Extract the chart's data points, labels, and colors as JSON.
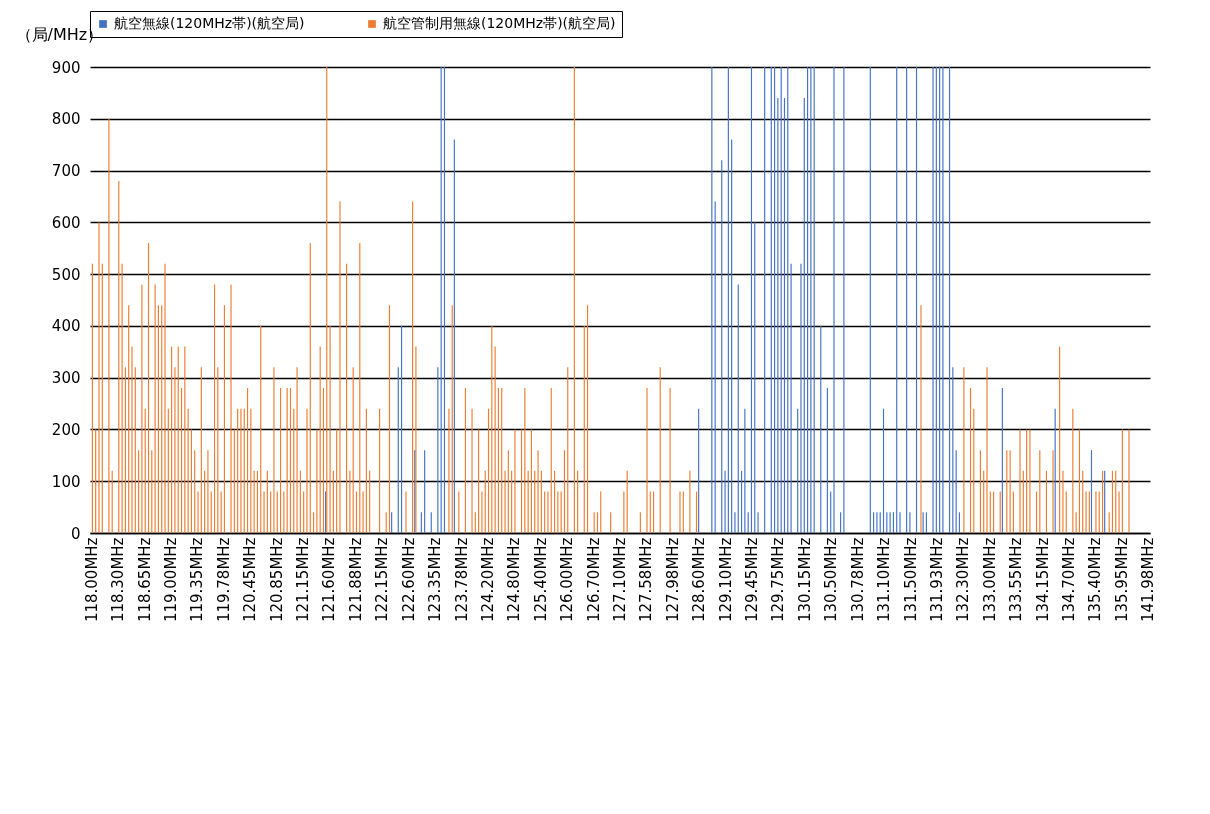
{
  "chart_data": {
    "type": "bar",
    "ylabel": "（局/MHz）",
    "categories": [
      "118.00MHz",
      null,
      null,
      null,
      null,
      null,
      null,
      null,
      "118.30MHz",
      null,
      null,
      null,
      null,
      null,
      null,
      null,
      "118.65MHz",
      null,
      null,
      null,
      null,
      null,
      null,
      null,
      "119.00MHz",
      null,
      null,
      null,
      null,
      null,
      null,
      null,
      "119.35MHz",
      null,
      null,
      null,
      null,
      null,
      null,
      null,
      "119.78MHz",
      null,
      null,
      null,
      null,
      null,
      null,
      null,
      "120.45MHz",
      null,
      null,
      null,
      null,
      null,
      null,
      null,
      "120.85MHz",
      null,
      null,
      null,
      null,
      null,
      null,
      null,
      "121.15MHz",
      null,
      null,
      null,
      null,
      null,
      null,
      null,
      "121.60MHz",
      null,
      null,
      null,
      null,
      null,
      null,
      null,
      "121.88MHz",
      null,
      null,
      null,
      null,
      null,
      null,
      null,
      "122.15MHz",
      null,
      null,
      null,
      null,
      null,
      null,
      null,
      "122.60MHz",
      null,
      null,
      null,
      null,
      null,
      null,
      null,
      "123.35MHz",
      null,
      null,
      null,
      null,
      null,
      null,
      null,
      "123.78MHz",
      null,
      null,
      null,
      null,
      null,
      null,
      null,
      "124.20MHz",
      null,
      null,
      null,
      null,
      null,
      null,
      null,
      "124.80MHz",
      null,
      null,
      null,
      null,
      null,
      null,
      null,
      "125.40MHz",
      null,
      null,
      null,
      null,
      null,
      null,
      null,
      "126.00MHz",
      null,
      null,
      null,
      null,
      null,
      null,
      null,
      "126.70MHz",
      null,
      null,
      null,
      null,
      null,
      null,
      null,
      "127.10MHz",
      null,
      null,
      null,
      null,
      null,
      null,
      null,
      "127.58MHz",
      null,
      null,
      null,
      null,
      null,
      null,
      null,
      "127.98MHz",
      null,
      null,
      null,
      null,
      null,
      null,
      null,
      "128.60MHz",
      null,
      null,
      null,
      null,
      null,
      null,
      null,
      "129.10MHz",
      null,
      null,
      null,
      null,
      null,
      null,
      null,
      "129.45MHz",
      null,
      null,
      null,
      null,
      null,
      null,
      null,
      "129.75MHz",
      null,
      null,
      null,
      null,
      null,
      null,
      null,
      "130.15MHz",
      null,
      null,
      null,
      null,
      null,
      null,
      null,
      "130.50MHz",
      null,
      null,
      null,
      null,
      null,
      null,
      null,
      "130.78MHz",
      null,
      null,
      null,
      null,
      null,
      null,
      null,
      "131.10MHz",
      null,
      null,
      null,
      null,
      null,
      null,
      null,
      "131.50MHz",
      null,
      null,
      null,
      null,
      null,
      null,
      null,
      "131.93MHz",
      null,
      null,
      null,
      null,
      null,
      null,
      null,
      "132.30MHz",
      null,
      null,
      null,
      null,
      null,
      null,
      null,
      "133.00MHz",
      null,
      null,
      null,
      null,
      null,
      null,
      null,
      "133.55MHz",
      null,
      null,
      null,
      null,
      null,
      null,
      null,
      "134.15MHz",
      null,
      null,
      null,
      null,
      null,
      null,
      null,
      "134.70MHz",
      null,
      null,
      null,
      null,
      null,
      null,
      null,
      "135.40MHz",
      null,
      null,
      null,
      null,
      null,
      null,
      null,
      "135.95MHz",
      null,
      null,
      null,
      null,
      null,
      null,
      null,
      "141.98MHz"
    ],
    "series": [
      {
        "name": "航空無線(120MHz帯)(航空局)",
        "color": "#4472c4",
        "values": [
          null,
          null,
          null,
          null,
          null,
          null,
          null,
          null,
          null,
          null,
          null,
          null,
          null,
          null,
          null,
          null,
          null,
          null,
          null,
          null,
          null,
          null,
          null,
          null,
          null,
          null,
          null,
          null,
          null,
          null,
          null,
          null,
          null,
          null,
          null,
          null,
          null,
          null,
          null,
          null,
          null,
          null,
          null,
          null,
          null,
          null,
          null,
          null,
          null,
          null,
          null,
          null,
          null,
          null,
          null,
          null,
          null,
          null,
          null,
          null,
          null,
          null,
          null,
          null,
          null,
          null,
          null,
          null,
          null,
          null,
          null,
          80,
          null,
          null,
          null,
          null,
          null,
          null,
          null,
          null,
          null,
          null,
          null,
          null,
          null,
          null,
          null,
          null,
          null,
          null,
          null,
          40,
          null,
          320,
          400,
          null,
          null,
          null,
          160,
          null,
          40,
          160,
          null,
          40,
          null,
          320,
          900,
          900,
          null,
          null,
          760,
          null,
          null,
          null,
          null,
          null,
          null,
          null,
          null,
          null,
          null,
          null,
          null,
          null,
          null,
          null,
          null,
          null,
          null,
          null,
          null,
          null,
          null,
          null,
          null,
          null,
          null,
          null,
          null,
          null,
          null,
          null,
          null,
          null,
          null,
          null,
          null,
          null,
          null,
          null,
          null,
          null,
          null,
          null,
          null,
          null,
          null,
          null,
          null,
          null,
          null,
          null,
          null,
          null,
          null,
          null,
          null,
          null,
          null,
          null,
          null,
          null,
          null,
          null,
          null,
          null,
          null,
          null,
          null,
          null,
          null,
          null,
          null,
          null,
          240,
          null,
          null,
          null,
          900,
          640,
          null,
          720,
          120,
          900,
          760,
          40,
          480,
          120,
          240,
          40,
          900,
          600,
          40,
          null,
          900,
          null,
          900,
          900,
          840,
          900,
          840,
          900,
          520,
          null,
          240,
          520,
          840,
          900,
          900,
          900,
          null,
          400,
          null,
          280,
          80,
          900,
          null,
          40,
          900,
          null,
          null,
          null,
          null,
          null,
          null,
          null,
          900,
          40,
          40,
          40,
          240,
          40,
          40,
          40,
          900,
          40,
          null,
          900,
          40,
          null,
          900,
          null,
          40,
          40,
          null,
          900,
          900,
          900,
          900,
          null,
          900,
          320,
          160,
          40,
          null,
          null,
          null,
          null,
          null,
          null,
          null,
          null,
          null,
          null,
          null,
          null,
          280,
          null,
          null,
          null,
          null,
          null,
          null,
          null,
          null,
          null,
          null,
          null,
          null,
          null,
          null,
          null,
          240,
          null,
          null,
          null,
          null,
          null,
          null,
          null,
          null,
          null,
          null,
          160,
          null,
          null,
          null,
          120,
          null,
          null,
          null,
          null,
          null,
          null,
          null,
          null,
          null,
          null,
          null,
          null,
          null
        ]
      },
      {
        "name": "航空管制用無線(120MHz帯)(航空局)",
        "color": "#ed7d31",
        "values": [
          520,
          200,
          600,
          520,
          null,
          800,
          120,
          null,
          680,
          520,
          320,
          440,
          360,
          320,
          160,
          480,
          240,
          560,
          160,
          480,
          440,
          440,
          520,
          240,
          360,
          320,
          360,
          280,
          360,
          240,
          200,
          160,
          80,
          320,
          120,
          160,
          80,
          480,
          320,
          80,
          440,
          null,
          480,
          200,
          240,
          240,
          240,
          280,
          240,
          120,
          120,
          400,
          80,
          120,
          80,
          320,
          80,
          280,
          80,
          280,
          280,
          240,
          320,
          120,
          80,
          240,
          560,
          40,
          200,
          360,
          280,
          900,
          400,
          120,
          200,
          640,
          null,
          520,
          120,
          320,
          80,
          560,
          80,
          240,
          120,
          null,
          null,
          240,
          null,
          40,
          440,
          null,
          null,
          null,
          null,
          80,
          null,
          640,
          360,
          null,
          null,
          null,
          null,
          null,
          null,
          null,
          null,
          null,
          240,
          440,
          null,
          80,
          null,
          280,
          null,
          240,
          40,
          200,
          80,
          120,
          240,
          400,
          360,
          280,
          280,
          120,
          160,
          120,
          200,
          null,
          200,
          280,
          120,
          200,
          120,
          160,
          120,
          80,
          80,
          280,
          120,
          80,
          80,
          160,
          320,
          null,
          900,
          120,
          null,
          400,
          440,
          null,
          40,
          40,
          80,
          null,
          null,
          40,
          null,
          null,
          null,
          80,
          120,
          null,
          null,
          null,
          40,
          null,
          280,
          80,
          80,
          null,
          320,
          null,
          null,
          280,
          null,
          null,
          80,
          80,
          null,
          120,
          null,
          80,
          null,
          null,
          null,
          null,
          null,
          null,
          null,
          null,
          null,
          null,
          null,
          null,
          null,
          null,
          null,
          null,
          null,
          null,
          null,
          null,
          null,
          null,
          null,
          null,
          null,
          null,
          null,
          null,
          null,
          null,
          null,
          null,
          null,
          null,
          null,
          null,
          null,
          null,
          null,
          null,
          null,
          null,
          null,
          null,
          null,
          null,
          null,
          null,
          null,
          null,
          null,
          null,
          null,
          null,
          null,
          null,
          null,
          null,
          null,
          null,
          null,
          null,
          null,
          null,
          null,
          null,
          null,
          440,
          null,
          null,
          null,
          null,
          null,
          null,
          null,
          null,
          null,
          null,
          null,
          null,
          320,
          null,
          280,
          240,
          null,
          160,
          120,
          320,
          80,
          80,
          null,
          80,
          null,
          160,
          160,
          80,
          null,
          200,
          120,
          200,
          200,
          null,
          80,
          160,
          null,
          120,
          null,
          160,
          null,
          360,
          120,
          80,
          null,
          240,
          40,
          200,
          120,
          80,
          80,
          null,
          80,
          80,
          120,
          null,
          40,
          120,
          120,
          80,
          200,
          null,
          200,
          null,
          null,
          null,
          null,
          null,
          null
        ]
      }
    ],
    "ylim": [
      0,
      900
    ],
    "yticks": [
      0,
      100,
      200,
      300,
      400,
      500,
      600,
      700,
      800,
      900
    ],
    "grid": "y",
    "legend": "top"
  }
}
